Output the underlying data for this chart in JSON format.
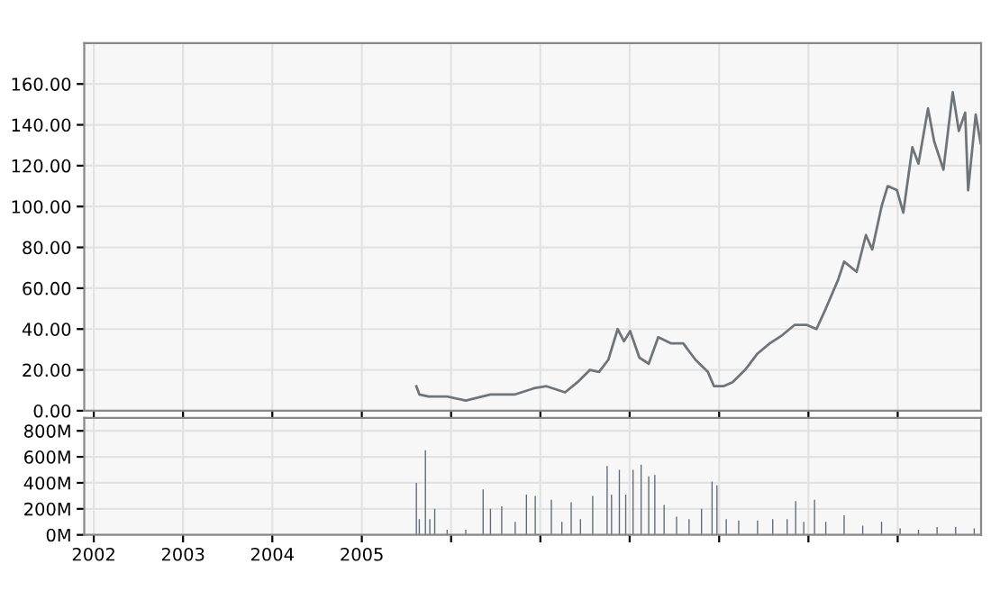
{
  "chart_data": [
    {
      "type": "line",
      "xlim": [
        "2001-11-23",
        "2011-12-08"
      ],
      "xticks": [
        {
          "value": "2002-01-01",
          "label": null
        },
        {
          "value": "2003-01-01",
          "label": null
        },
        {
          "value": "2004-01-01",
          "label": null
        },
        {
          "value": "2005-01-01",
          "label": null
        },
        {
          "value": "2006-01-01",
          "label": null
        },
        {
          "value": "2007-01-01",
          "label": null
        },
        {
          "value": "2008-01-01",
          "label": null
        },
        {
          "value": "2009-01-01",
          "label": null
        },
        {
          "value": "2010-01-01",
          "label": null
        },
        {
          "value": "2011-01-01",
          "label": null
        }
      ],
      "ylim": [
        0,
        180
      ],
      "yticks": [
        {
          "value": 0,
          "label": "0.00"
        },
        {
          "value": 20,
          "label": "20.00"
        },
        {
          "value": 40,
          "label": "40.00"
        },
        {
          "value": 60,
          "label": "60.00"
        },
        {
          "value": 80,
          "label": "80.00"
        },
        {
          "value": 100,
          "label": "100.00"
        },
        {
          "value": 120,
          "label": "120.00"
        },
        {
          "value": 140,
          "label": "140.00"
        },
        {
          "value": 160,
          "label": "160.00"
        }
      ],
      "tick_labels": "y",
      "grid": true,
      "line_style": "solid",
      "x": [
        "2005-08-12",
        "2005-08-24",
        "2005-10-01",
        "2005-12-16",
        "2006-03-02",
        "2006-06-11",
        "2006-09-20",
        "2006-12-06",
        "2007-01-26",
        "2007-04-12",
        "2007-06-02",
        "2007-07-23",
        "2007-08-29",
        "2007-10-06",
        "2007-11-13",
        "2007-12-09",
        "2008-01-03",
        "2008-02-10",
        "2008-03-19",
        "2008-04-27",
        "2008-06-17",
        "2008-08-07",
        "2008-09-26",
        "2008-11-16",
        "2008-12-11",
        "2009-01-18",
        "2009-02-25",
        "2009-04-17",
        "2009-06-07",
        "2009-07-27",
        "2009-09-16",
        "2009-11-05",
        "2009-12-26",
        "2010-02-03",
        "2010-03-13",
        "2010-05-02",
        "2010-05-27",
        "2010-07-17",
        "2010-08-24",
        "2010-09-19",
        "2010-10-27",
        "2010-11-21",
        "2010-12-29",
        "2011-01-24",
        "2011-03-02",
        "2011-03-27",
        "2011-05-05",
        "2011-05-30",
        "2011-07-07",
        "2011-08-14",
        "2011-09-08",
        "2011-10-04",
        "2011-10-16",
        "2011-11-16",
        "2011-12-06"
      ],
      "series": [
        {
          "color": "#6e7478",
          "values": [
            12,
            8,
            7,
            7,
            5,
            8,
            8,
            11,
            12,
            9,
            14,
            20,
            19,
            25,
            40,
            34,
            39,
            26,
            23,
            36,
            33,
            33,
            25,
            19,
            12,
            12,
            14,
            20,
            28,
            33,
            37,
            42,
            42,
            40,
            50,
            64,
            73,
            68,
            86,
            79,
            100,
            110,
            108,
            97,
            129,
            121,
            148,
            132,
            118,
            156,
            137,
            146,
            108,
            145,
            131
          ]
        }
      ]
    },
    {
      "type": "bar",
      "xlim": [
        "2001-11-23",
        "2011-12-08"
      ],
      "xticks": [
        {
          "value": "2002-01-01",
          "label": "2002"
        },
        {
          "value": "2003-01-01",
          "label": "2003"
        },
        {
          "value": "2004-01-01",
          "label": "2004"
        },
        {
          "value": "2005-01-01",
          "label": "2005"
        },
        {
          "value": "2006-01-01",
          "label": null
        },
        {
          "value": "2007-01-01",
          "label": null
        },
        {
          "value": "2008-01-01",
          "label": null
        },
        {
          "value": "2009-01-01",
          "label": null
        },
        {
          "value": "2010-01-01",
          "label": null
        },
        {
          "value": "2011-01-01",
          "label": null
        }
      ],
      "ylim": [
        0,
        900
      ],
      "yticks": [
        {
          "value": 0,
          "label": "0M"
        },
        {
          "value": 200,
          "label": "200M"
        },
        {
          "value": 400,
          "label": "400M"
        },
        {
          "value": 600,
          "label": "600M"
        },
        {
          "value": 800,
          "label": "800M"
        }
      ],
      "grid": true,
      "x": [
        "2005-08-12",
        "2005-08-24",
        "2005-09-18",
        "2005-10-06",
        "2005-10-26",
        "2005-12-16",
        "2006-03-02",
        "2006-05-12",
        "2006-06-11",
        "2006-07-27",
        "2006-09-20",
        "2006-11-05",
        "2006-12-11",
        "2007-02-15",
        "2007-03-30",
        "2007-05-07",
        "2007-06-14",
        "2007-08-03",
        "2007-10-01",
        "2007-10-19",
        "2007-11-20",
        "2007-12-16",
        "2008-01-15",
        "2008-02-17",
        "2008-03-19",
        "2008-04-13",
        "2008-05-21",
        "2008-07-11",
        "2008-08-31",
        "2008-10-21",
        "2008-12-03",
        "2008-12-23",
        "2009-01-30",
        "2009-03-22",
        "2009-06-07",
        "2009-08-08",
        "2009-10-06",
        "2009-11-10",
        "2009-12-13",
        "2010-01-26",
        "2010-03-13",
        "2010-05-27",
        "2010-08-11",
        "2010-10-27",
        "2011-01-11",
        "2011-03-27",
        "2011-06-11",
        "2011-08-26",
        "2011-11-10"
      ],
      "series": [
        {
          "color": "#5d6b7a",
          "values": [
            400,
            120,
            650,
            120,
            200,
            40,
            40,
            350,
            200,
            220,
            100,
            310,
            300,
            270,
            100,
            250,
            120,
            300,
            530,
            310,
            500,
            310,
            500,
            540,
            450,
            460,
            230,
            140,
            120,
            200,
            410,
            380,
            120,
            110,
            110,
            120,
            120,
            260,
            100,
            270,
            100,
            150,
            70,
            100,
            50,
            40,
            60,
            60,
            50
          ]
        }
      ]
    }
  ]
}
